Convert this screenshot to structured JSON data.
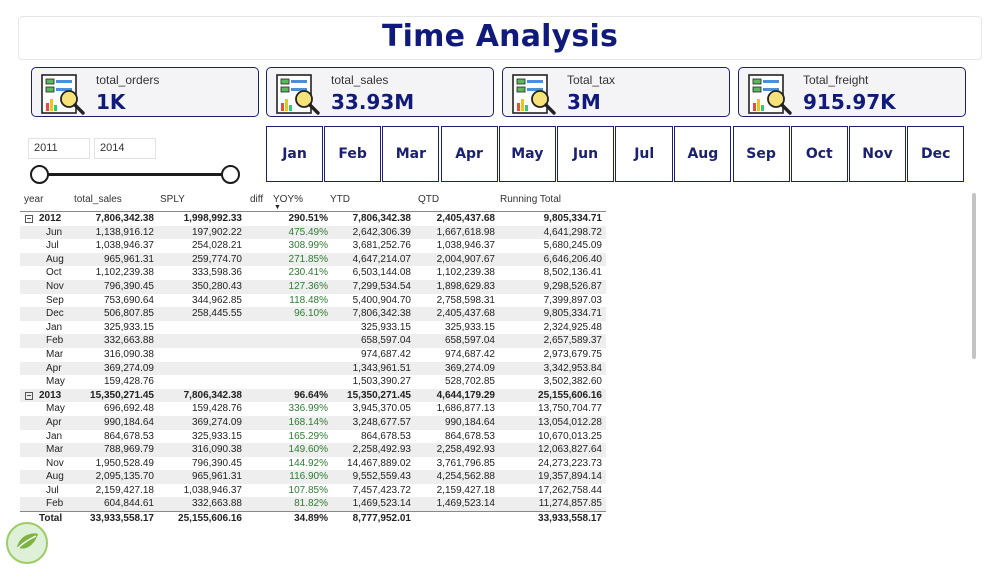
{
  "page": {
    "title": "Time Analysis"
  },
  "kpis": [
    {
      "label": "total_orders",
      "value": "1K",
      "icon": "report-magnifier-icon"
    },
    {
      "label": "total_sales",
      "value": "33.93M",
      "icon": "report-magnifier-icon"
    },
    {
      "label": "Total_tax",
      "value": "3M",
      "icon": "report-magnifier-icon"
    },
    {
      "label": "Total_freight",
      "value": "915.97K",
      "icon": "report-magnifier-icon"
    }
  ],
  "year_slicer": {
    "start": "2011",
    "end": "2014"
  },
  "months": [
    "Jan",
    "Feb",
    "Mar",
    "Apr",
    "May",
    "Jun",
    "Jul",
    "Aug",
    "Sep",
    "Oct",
    "Nov",
    "Dec"
  ],
  "matrix": {
    "headers": {
      "year": "year",
      "total_sales": "total_sales",
      "sply": "SPLY",
      "diff": "diff",
      "yoy": "YOY%",
      "ytd": "YTD",
      "qtd": "QTD",
      "running": "Running Total"
    },
    "expand_glyph": "⊟",
    "rows": [
      {
        "type": "year",
        "label": "2012",
        "sales": "7,806,342.38",
        "sply": "1,998,992.33",
        "yoy": "290.51%",
        "ytd": "7,806,342.38",
        "qtd": "2,405,437.68",
        "run": "9,805,334.71"
      },
      {
        "type": "month",
        "label": "Jun",
        "sales": "1,138,916.12",
        "sply": "197,902.22",
        "yoy": "475.49%",
        "ytd": "2,642,306.39",
        "qtd": "1,667,618.98",
        "run": "4,641,298.72"
      },
      {
        "type": "month",
        "label": "Jul",
        "sales": "1,038,946.37",
        "sply": "254,028.21",
        "yoy": "308.99%",
        "ytd": "3,681,252.76",
        "qtd": "1,038,946.37",
        "run": "5,680,245.09"
      },
      {
        "type": "month",
        "label": "Aug",
        "sales": "965,961.31",
        "sply": "259,774.70",
        "yoy": "271.85%",
        "ytd": "4,647,214.07",
        "qtd": "2,004,907.67",
        "run": "6,646,206.40"
      },
      {
        "type": "month",
        "label": "Oct",
        "sales": "1,102,239.38",
        "sply": "333,598.36",
        "yoy": "230.41%",
        "ytd": "6,503,144.08",
        "qtd": "1,102,239.38",
        "run": "8,502,136.41"
      },
      {
        "type": "month",
        "label": "Nov",
        "sales": "796,390.45",
        "sply": "350,280.43",
        "yoy": "127.36%",
        "ytd": "7,299,534.54",
        "qtd": "1,898,629.83",
        "run": "9,298,526.87"
      },
      {
        "type": "month",
        "label": "Sep",
        "sales": "753,690.64",
        "sply": "344,962.85",
        "yoy": "118.48%",
        "ytd": "5,400,904.70",
        "qtd": "2,758,598.31",
        "run": "7,399,897.03"
      },
      {
        "type": "month",
        "label": "Dec",
        "sales": "506,807.85",
        "sply": "258,445.55",
        "yoy": "96.10%",
        "ytd": "7,806,342.38",
        "qtd": "2,405,437.68",
        "run": "9,805,334.71"
      },
      {
        "type": "month",
        "label": "Jan",
        "sales": "325,933.15",
        "sply": "",
        "yoy": "",
        "ytd": "325,933.15",
        "qtd": "325,933.15",
        "run": "2,324,925.48"
      },
      {
        "type": "month",
        "label": "Feb",
        "sales": "332,663.88",
        "sply": "",
        "yoy": "",
        "ytd": "658,597.04",
        "qtd": "658,597.04",
        "run": "2,657,589.37"
      },
      {
        "type": "month",
        "label": "Mar",
        "sales": "316,090.38",
        "sply": "",
        "yoy": "",
        "ytd": "974,687.42",
        "qtd": "974,687.42",
        "run": "2,973,679.75"
      },
      {
        "type": "month",
        "label": "Apr",
        "sales": "369,274.09",
        "sply": "",
        "yoy": "",
        "ytd": "1,343,961.51",
        "qtd": "369,274.09",
        "run": "3,342,953.84"
      },
      {
        "type": "month",
        "label": "May",
        "sales": "159,428.76",
        "sply": "",
        "yoy": "",
        "ytd": "1,503,390.27",
        "qtd": "528,702.85",
        "run": "3,502,382.60"
      },
      {
        "type": "year",
        "label": "2013",
        "sales": "15,350,271.45",
        "sply": "7,806,342.38",
        "yoy": "96.64%",
        "ytd": "15,350,271.45",
        "qtd": "4,644,179.29",
        "run": "25,155,606.16"
      },
      {
        "type": "month",
        "label": "May",
        "sales": "696,692.48",
        "sply": "159,428.76",
        "yoy": "336.99%",
        "ytd": "3,945,370.05",
        "qtd": "1,686,877.13",
        "run": "13,750,704.77"
      },
      {
        "type": "month",
        "label": "Apr",
        "sales": "990,184.64",
        "sply": "369,274.09",
        "yoy": "168.14%",
        "ytd": "3,248,677.57",
        "qtd": "990,184.64",
        "run": "13,054,012.28"
      },
      {
        "type": "month",
        "label": "Jan",
        "sales": "864,678.53",
        "sply": "325,933.15",
        "yoy": "165.29%",
        "ytd": "864,678.53",
        "qtd": "864,678.53",
        "run": "10,670,013.25"
      },
      {
        "type": "month",
        "label": "Mar",
        "sales": "788,969.79",
        "sply": "316,090.38",
        "yoy": "149.60%",
        "ytd": "2,258,492.93",
        "qtd": "2,258,492.93",
        "run": "12,063,827.64"
      },
      {
        "type": "month",
        "label": "Nov",
        "sales": "1,950,528.49",
        "sply": "796,390.45",
        "yoy": "144.92%",
        "ytd": "14,467,889.02",
        "qtd": "3,761,796.85",
        "run": "24,273,223.73"
      },
      {
        "type": "month",
        "label": "Aug",
        "sales": "2,095,135.70",
        "sply": "965,961.31",
        "yoy": "116.90%",
        "ytd": "9,552,559.43",
        "qtd": "4,254,562.88",
        "run": "19,357,894.14"
      },
      {
        "type": "month",
        "label": "Jul",
        "sales": "2,159,427.18",
        "sply": "1,038,946.37",
        "yoy": "107.85%",
        "ytd": "7,457,423.72",
        "qtd": "2,159,427.18",
        "run": "17,262,758.44"
      },
      {
        "type": "month",
        "label": "Feb",
        "sales": "604,844.61",
        "sply": "332,663.88",
        "yoy": "81.82%",
        "ytd": "1,469,523.14",
        "qtd": "1,469,523.14",
        "run": "11,274,857.85"
      }
    ],
    "total": {
      "label": "Total",
      "sales": "33,933,558.17",
      "sply": "25,155,606.16",
      "yoy": "34.89%",
      "ytd": "8,777,952.01",
      "qtd": "",
      "run": "33,933,558.17"
    }
  },
  "colors": {
    "accent": "#0f1a7a",
    "border": "#1a2170",
    "positive": "#2e7d32",
    "row_alt": "#eeeeee"
  }
}
